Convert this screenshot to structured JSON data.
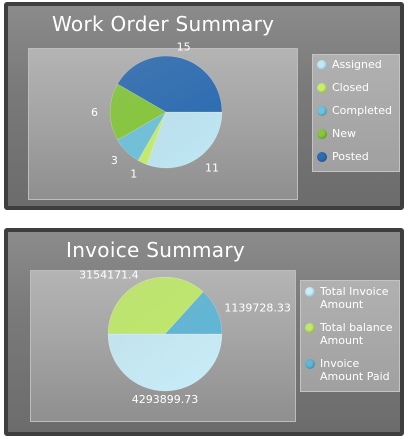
{
  "chart_data": [
    {
      "type": "pie",
      "title": "Work Order Summary",
      "categories": [
        "Assigned",
        "Closed",
        "Completed",
        "New",
        "Posted"
      ],
      "values": [
        11,
        1,
        3,
        6,
        15
      ],
      "colors": [
        "#bfe8f6",
        "#c6f06a",
        "#6ec2dc",
        "#86c83a",
        "#2e6db2"
      ],
      "data_labels": [
        "11",
        "1",
        "3",
        "6",
        "15"
      ],
      "legend_position": "right",
      "grid": false
    },
    {
      "type": "pie",
      "title": "Invoice Summary",
      "categories": [
        "Total Invoice Amount",
        "Total balance Amount",
        "Invoice Amount Paid"
      ],
      "values": [
        4293899.73,
        3154171.4,
        1139728.33
      ],
      "colors": [
        "#c8eefa",
        "#bfe96a",
        "#5fb6d6"
      ],
      "data_labels": [
        "4293899.73",
        "3154171.4",
        "1139728.33"
      ],
      "legend_position": "right",
      "grid": false
    }
  ]
}
